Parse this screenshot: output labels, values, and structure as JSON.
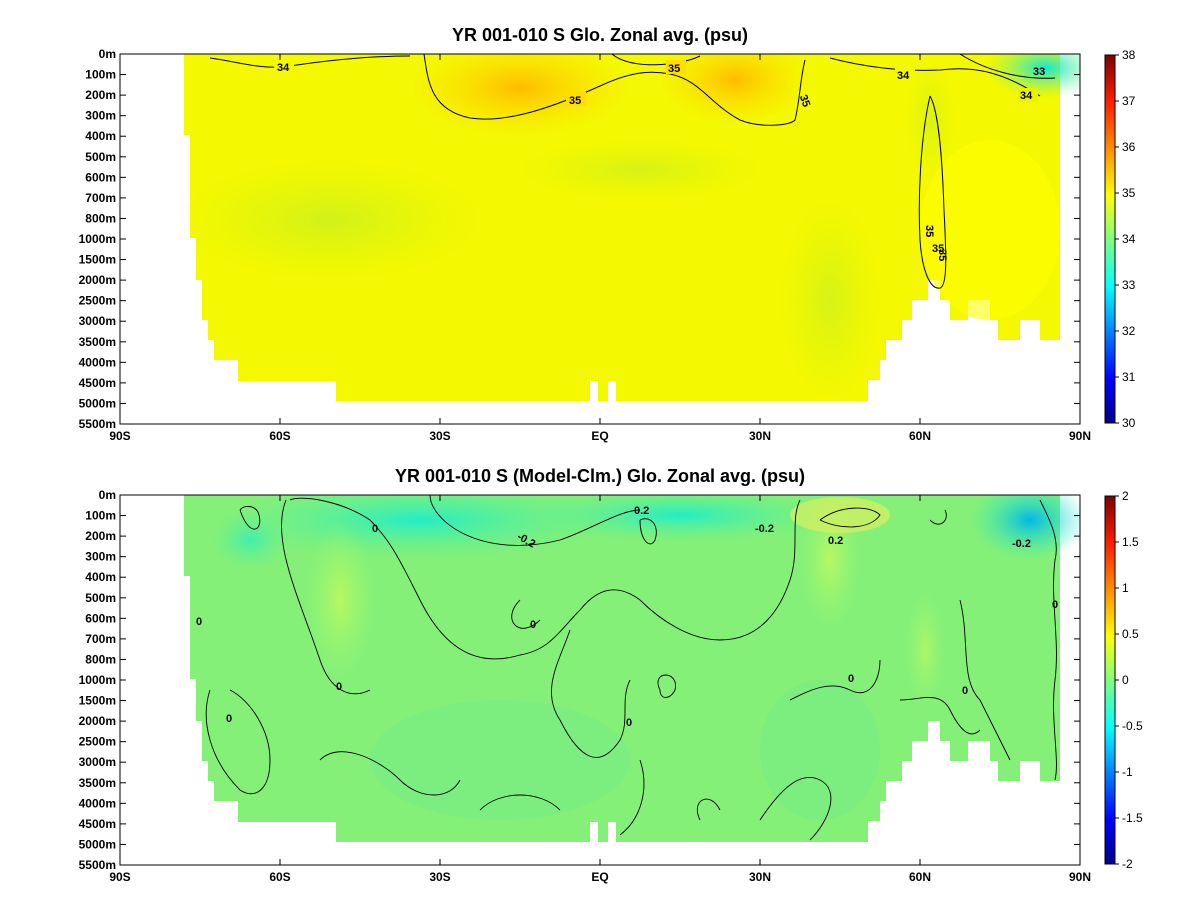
{
  "chart_data": [
    {
      "type": "heatmap",
      "title": "YR 001-010 S Glo. Zonal avg. (psu)",
      "x_ticks": [
        "90S",
        "60S",
        "30S",
        "EQ",
        "30N",
        "60N",
        "90N"
      ],
      "x_tick_values": [
        -90,
        -60,
        -30,
        0,
        30,
        60,
        90
      ],
      "xlim": [
        -90,
        90
      ],
      "y_ticks": [
        "0m",
        "100m",
        "200m",
        "300m",
        "400m",
        "500m",
        "600m",
        "700m",
        "800m",
        "1000m",
        "1500m",
        "2000m",
        "2500m",
        "3000m",
        "3500m",
        "4000m",
        "4500m",
        "5000m",
        "5500m"
      ],
      "colorbar": {
        "min": 30,
        "max": 38,
        "ticks": [
          "30",
          "31",
          "32",
          "33",
          "34",
          "35",
          "36",
          "37",
          "38"
        ]
      },
      "contour_labels": [
        "34",
        "35",
        "35",
        "35",
        "34",
        "34",
        "33",
        "35",
        "35",
        "35"
      ],
      "colors": {
        "low": "#00008c",
        "mid": "#ffff00",
        "high": "#800000"
      }
    },
    {
      "type": "heatmap",
      "title": "YR 001-010 S (Model-Clm.) Glo. Zonal avg. (psu)",
      "x_ticks": [
        "90S",
        "60S",
        "30S",
        "EQ",
        "30N",
        "60N",
        "90N"
      ],
      "x_tick_values": [
        -90,
        -60,
        -30,
        0,
        30,
        60,
        90
      ],
      "xlim": [
        -90,
        90
      ],
      "y_ticks": [
        "0m",
        "100m",
        "200m",
        "300m",
        "400m",
        "500m",
        "600m",
        "700m",
        "800m",
        "1000m",
        "1500m",
        "2000m",
        "2500m",
        "3000m",
        "3500m",
        "4000m",
        "4500m",
        "5000m",
        "5500m"
      ],
      "colorbar": {
        "min": -2,
        "max": 2,
        "ticks": [
          "-2",
          "-1.5",
          "-1",
          "-0.5",
          "0",
          "0.5",
          "1",
          "1.5",
          "2"
        ]
      },
      "contour_labels": [
        "0",
        "0.2",
        "-0.2",
        "-0.2",
        "0.2",
        "-0.2",
        "0",
        "0",
        "0",
        "0",
        "0",
        "0",
        "0",
        "0"
      ],
      "colors": {
        "low": "#00008c",
        "mid": "#8cff73",
        "high": "#800000"
      }
    }
  ]
}
